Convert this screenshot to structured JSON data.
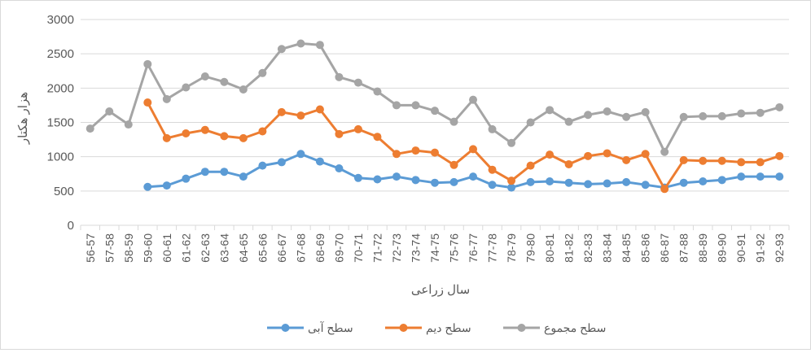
{
  "chart_data": {
    "type": "line",
    "xlabel": "سال زراعی",
    "ylabel": "هزار هکتار",
    "ylim": [
      0,
      3000
    ],
    "yticks": [
      0,
      500,
      1000,
      1500,
      2000,
      2500,
      3000
    ],
    "grid": true,
    "legend_position": "bottom",
    "categories": [
      "56-57",
      "57-58",
      "58-59",
      "59-60",
      "60-61",
      "61-62",
      "62-63",
      "63-64",
      "64-65",
      "65-66",
      "66-67",
      "67-68",
      "68-69",
      "69-70",
      "70-71",
      "71-72",
      "72-73",
      "73-74",
      "74-75",
      "75-76",
      "76-77",
      "77-78",
      "78-79",
      "79-80",
      "80-81",
      "81-82",
      "82-83",
      "83-84",
      "84-85",
      "85-86",
      "86-87",
      "87-88",
      "88-89",
      "89-90",
      "90-91",
      "91-92",
      "92-93"
    ],
    "series": [
      {
        "name": "سطح آبی",
        "color": "#5b9bd5",
        "values": [
          null,
          null,
          null,
          560,
          580,
          680,
          780,
          780,
          710,
          870,
          920,
          1040,
          930,
          830,
          690,
          670,
          710,
          660,
          620,
          630,
          710,
          590,
          550,
          630,
          640,
          620,
          600,
          610,
          630,
          590,
          550,
          620,
          640,
          660,
          710,
          710,
          710
        ]
      },
      {
        "name": "سطح دیم",
        "color": "#ed7d31",
        "values": [
          null,
          null,
          null,
          1790,
          1270,
          1340,
          1390,
          1300,
          1270,
          1370,
          1650,
          1600,
          1690,
          1330,
          1400,
          1290,
          1040,
          1090,
          1060,
          880,
          1110,
          810,
          650,
          870,
          1030,
          890,
          1010,
          1050,
          950,
          1040,
          530,
          950,
          940,
          940,
          920,
          920,
          1010
        ]
      },
      {
        "name": "سطح مجموع",
        "color": "#a5a5a5",
        "values": [
          1410,
          1660,
          1470,
          2350,
          1840,
          2010,
          2170,
          2090,
          1980,
          2220,
          2570,
          2650,
          2630,
          2160,
          2080,
          1950,
          1750,
          1750,
          1670,
          1510,
          1830,
          1400,
          1200,
          1500,
          1680,
          1510,
          1610,
          1660,
          1580,
          1650,
          1070,
          1580,
          1590,
          1590,
          1630,
          1640,
          1720
        ]
      }
    ]
  }
}
